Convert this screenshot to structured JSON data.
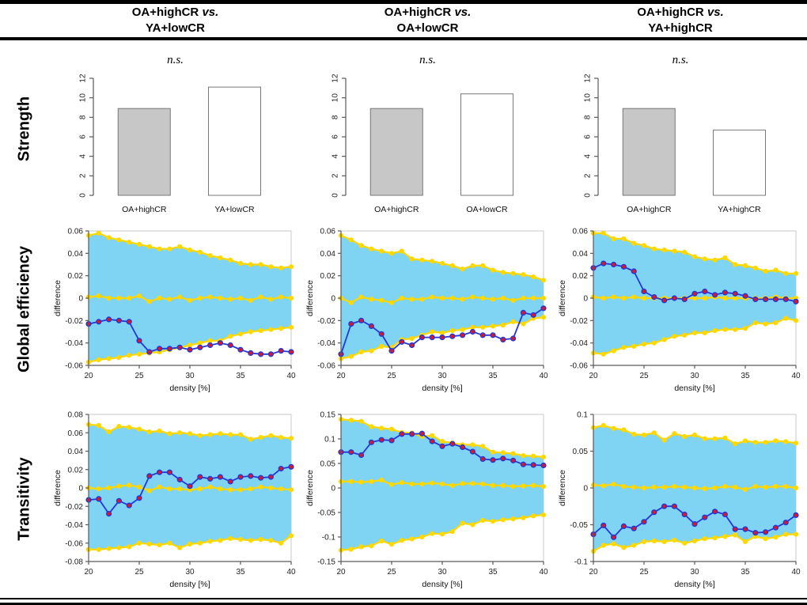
{
  "header": {
    "columns": [
      {
        "group_a": "OA+highCR",
        "vs": "vs.",
        "group_b": "YA+lowCR"
      },
      {
        "group_a": "OA+highCR",
        "vs": "vs.",
        "group_b": "OA+lowCR"
      },
      {
        "group_a": "OA+highCR",
        "vs": "vs.",
        "group_b": "YA+highCR"
      }
    ]
  },
  "row_labels": [
    "Strength",
    "Global efficiency",
    "Transitivity"
  ],
  "significance": {
    "col1": "n.s.",
    "col2": "n.s.",
    "col3": "n.s."
  },
  "colors": {
    "band_fill": "#7fd3f3",
    "ci_line": "#ffd800",
    "diff_line": "#2438d8",
    "marker_fill": "#e0151f",
    "bar_gray": "#c7c7c7",
    "bar_white": "#ffffff",
    "axis": "#5a5a5a",
    "box": "#c9c9c9"
  },
  "chart_data": [
    {
      "type": "bar",
      "row": "Strength",
      "comparison": "OA+highCR vs. YA+lowCR",
      "categories": [
        "OA+highCR",
        "YA+lowCR"
      ],
      "values": [
        8.9,
        11.1
      ],
      "bar_colors": [
        "#c7c7c7",
        "#ffffff"
      ],
      "ylim": [
        0,
        12
      ],
      "yticks": [
        "0",
        "2",
        "4",
        "6",
        "8",
        "10",
        "12"
      ],
      "annotation": "n.s."
    },
    {
      "type": "bar",
      "row": "Strength",
      "comparison": "OA+highCR vs. OA+lowCR",
      "categories": [
        "OA+highCR",
        "OA+lowCR"
      ],
      "values": [
        8.9,
        10.4
      ],
      "bar_colors": [
        "#c7c7c7",
        "#ffffff"
      ],
      "ylim": [
        0,
        12
      ],
      "yticks": [
        "0",
        "2",
        "4",
        "6",
        "8",
        "10",
        "12"
      ],
      "annotation": "n.s."
    },
    {
      "type": "bar",
      "row": "Strength",
      "comparison": "OA+highCR vs. YA+highCR",
      "categories": [
        "OA+highCR",
        "YA+highCR"
      ],
      "values": [
        8.9,
        6.7
      ],
      "bar_colors": [
        "#c7c7c7",
        "#ffffff"
      ],
      "ylim": [
        0,
        12
      ],
      "yticks": [
        "0",
        "2",
        "4",
        "6",
        "8",
        "10",
        "12"
      ],
      "annotation": "n.s."
    },
    {
      "type": "area",
      "row": "Global efficiency",
      "comparison": "OA+highCR vs. YA+lowCR",
      "xlabel": "density [%]",
      "ylabel": "difference",
      "x": [
        20,
        21,
        22,
        23,
        24,
        25,
        26,
        27,
        28,
        29,
        30,
        31,
        32,
        33,
        34,
        35,
        36,
        37,
        38,
        39,
        40
      ],
      "xticks": [
        "20",
        "25",
        "30",
        "35",
        "40"
      ],
      "ylim": [
        -0.06,
        0.06
      ],
      "yticks": [
        "-0.06",
        "-0.04",
        "-0.02",
        "0",
        "0.02",
        "0.04",
        "0.06"
      ],
      "series": [
        {
          "name": "upper CI",
          "values": [
            0.056,
            0.058,
            0.054,
            0.052,
            0.05,
            0.048,
            0.046,
            0.044,
            0.044,
            0.046,
            0.043,
            0.041,
            0.038,
            0.036,
            0.034,
            0.031,
            0.03,
            0.03,
            0.028,
            0.027,
            0.028
          ]
        },
        {
          "name": "null mean",
          "values": [
            0.001,
            0.002,
            0.0,
            0.0,
            0.0,
            0.002,
            -0.003,
            0.0,
            -0.001,
            0.001,
            -0.002,
            0.0,
            0.001,
            0.0,
            -0.001,
            0.0,
            -0.002,
            0.001,
            -0.001,
            0.001,
            0.0
          ]
        },
        {
          "name": "lower CI",
          "values": [
            -0.057,
            -0.055,
            -0.054,
            -0.053,
            -0.051,
            -0.05,
            -0.049,
            -0.048,
            -0.046,
            -0.044,
            -0.042,
            -0.04,
            -0.038,
            -0.038,
            -0.034,
            -0.032,
            -0.03,
            -0.029,
            -0.028,
            -0.027,
            -0.026
          ]
        },
        {
          "name": "observed difference",
          "values": [
            -0.023,
            -0.021,
            -0.019,
            -0.02,
            -0.021,
            -0.038,
            -0.048,
            -0.045,
            -0.045,
            -0.044,
            -0.046,
            -0.044,
            -0.042,
            -0.04,
            -0.042,
            -0.046,
            -0.049,
            -0.05,
            -0.05,
            -0.047,
            -0.048
          ]
        }
      ]
    },
    {
      "type": "area",
      "row": "Global efficiency",
      "comparison": "OA+highCR vs. OA+lowCR",
      "xlabel": "density [%]",
      "ylabel": "difference",
      "x": [
        20,
        21,
        22,
        23,
        24,
        25,
        26,
        27,
        28,
        29,
        30,
        31,
        32,
        33,
        34,
        35,
        36,
        37,
        38,
        39,
        40
      ],
      "xticks": [
        "20",
        "25",
        "30",
        "35",
        "40"
      ],
      "ylim": [
        -0.06,
        0.06
      ],
      "yticks": [
        "-0.06",
        "-0.04",
        "-0.02",
        "0",
        "0.02",
        "0.04",
        "0.06"
      ],
      "series": [
        {
          "name": "upper CI",
          "values": [
            0.056,
            0.052,
            0.047,
            0.044,
            0.042,
            0.04,
            0.042,
            0.035,
            0.034,
            0.033,
            0.031,
            0.029,
            0.026,
            0.029,
            0.029,
            0.025,
            0.023,
            0.022,
            0.021,
            0.019,
            0.016
          ]
        },
        {
          "name": "null mean",
          "values": [
            0.0,
            -0.004,
            0.001,
            -0.001,
            -0.002,
            -0.004,
            0.0,
            -0.001,
            -0.001,
            0.001,
            0.0,
            0.0,
            -0.001,
            0.001,
            0.0,
            -0.001,
            0.0,
            -0.002,
            0.0,
            0.0,
            0.0
          ]
        },
        {
          "name": "lower CI",
          "values": [
            -0.054,
            -0.052,
            -0.048,
            -0.047,
            -0.043,
            -0.044,
            -0.037,
            -0.036,
            -0.033,
            -0.03,
            -0.031,
            -0.029,
            -0.028,
            -0.026,
            -0.026,
            -0.025,
            -0.024,
            -0.021,
            -0.023,
            -0.018,
            -0.017
          ]
        },
        {
          "name": "observed difference",
          "values": [
            -0.05,
            -0.023,
            -0.02,
            -0.025,
            -0.032,
            -0.047,
            -0.039,
            -0.042,
            -0.035,
            -0.035,
            -0.035,
            -0.034,
            -0.033,
            -0.03,
            -0.033,
            -0.033,
            -0.037,
            -0.036,
            -0.013,
            -0.015,
            -0.009
          ]
        }
      ]
    },
    {
      "type": "area",
      "row": "Global efficiency",
      "comparison": "OA+highCR vs. YA+highCR",
      "xlabel": "density [%]",
      "ylabel": "difference",
      "x": [
        20,
        21,
        22,
        23,
        24,
        25,
        26,
        27,
        28,
        29,
        30,
        31,
        32,
        33,
        34,
        35,
        36,
        37,
        38,
        39,
        40
      ],
      "xticks": [
        "20",
        "25",
        "30",
        "35",
        "40"
      ],
      "ylim": [
        -0.06,
        0.06
      ],
      "yticks": [
        "-0.06",
        "-0.04",
        "-0.02",
        "0",
        "0.02",
        "0.04",
        "0.06"
      ],
      "series": [
        {
          "name": "upper CI",
          "values": [
            0.058,
            0.058,
            0.053,
            0.053,
            0.049,
            0.047,
            0.044,
            0.043,
            0.042,
            0.041,
            0.037,
            0.035,
            0.034,
            0.036,
            0.03,
            0.029,
            0.027,
            0.024,
            0.025,
            0.022,
            0.022
          ]
        },
        {
          "name": "null mean",
          "values": [
            0.001,
            0.0,
            0.001,
            0.0,
            0.001,
            0.0,
            0.0,
            0.0,
            0.0,
            0.0,
            0.0,
            0.0,
            0.001,
            0.0,
            0.0,
            0.0,
            0.0,
            0.0,
            0.001,
            0.0,
            0.0
          ]
        },
        {
          "name": "lower CI",
          "values": [
            -0.049,
            -0.05,
            -0.047,
            -0.044,
            -0.043,
            -0.041,
            -0.04,
            -0.037,
            -0.034,
            -0.033,
            -0.031,
            -0.031,
            -0.029,
            -0.028,
            -0.028,
            -0.027,
            -0.022,
            -0.023,
            -0.022,
            -0.018,
            -0.02
          ]
        },
        {
          "name": "observed difference",
          "values": [
            0.027,
            0.031,
            0.03,
            0.028,
            0.024,
            0.006,
            0.001,
            -0.002,
            0.0,
            -0.001,
            0.004,
            0.006,
            0.003,
            0.005,
            0.004,
            0.002,
            -0.001,
            -0.001,
            -0.001,
            -0.001,
            -0.003
          ]
        }
      ]
    },
    {
      "type": "area",
      "row": "Transitivity",
      "comparison": "OA+highCR vs. YA+lowCR",
      "xlabel": "density [%]",
      "ylabel": "difference",
      "x": [
        20,
        21,
        22,
        23,
        24,
        25,
        26,
        27,
        28,
        29,
        30,
        31,
        32,
        33,
        34,
        35,
        36,
        37,
        38,
        39,
        40
      ],
      "xticks": [
        "20",
        "25",
        "30",
        "35",
        "40"
      ],
      "ylim": [
        -0.08,
        0.08
      ],
      "yticks": [
        "-0.08",
        "-0.06",
        "-0.04",
        "-0.02",
        "0",
        "0.02",
        "0.04",
        "0.06",
        "0.08"
      ],
      "series": [
        {
          "name": "upper CI",
          "values": [
            0.069,
            0.068,
            0.061,
            0.067,
            0.066,
            0.064,
            0.061,
            0.062,
            0.059,
            0.06,
            0.059,
            0.057,
            0.058,
            0.059,
            0.058,
            0.058,
            0.053,
            0.055,
            0.057,
            0.055,
            0.054
          ]
        },
        {
          "name": "null mean",
          "values": [
            0.0,
            -0.001,
            0.0,
            0.002,
            0.003,
            0.001,
            -0.003,
            0.001,
            -0.001,
            -0.001,
            -0.002,
            -0.001,
            0.001,
            -0.001,
            -0.002,
            -0.002,
            -0.001,
            0.001,
            0.0,
            -0.001,
            -0.002
          ]
        },
        {
          "name": "lower CI",
          "values": [
            -0.067,
            -0.067,
            -0.066,
            -0.065,
            -0.064,
            -0.06,
            -0.061,
            -0.062,
            -0.06,
            -0.065,
            -0.061,
            -0.06,
            -0.058,
            -0.057,
            -0.055,
            -0.056,
            -0.057,
            -0.056,
            -0.057,
            -0.06,
            -0.052
          ]
        },
        {
          "name": "observed difference",
          "values": [
            -0.013,
            -0.012,
            -0.028,
            -0.014,
            -0.019,
            -0.011,
            0.013,
            0.017,
            0.017,
            0.009,
            0.002,
            0.012,
            0.01,
            0.012,
            0.007,
            0.012,
            0.013,
            0.011,
            0.012,
            0.021,
            0.023
          ]
        }
      ]
    },
    {
      "type": "area",
      "row": "Transitivity",
      "comparison": "OA+highCR vs. OA+lowCR",
      "xlabel": "density [%]",
      "ylabel": "difference",
      "x": [
        20,
        21,
        22,
        23,
        24,
        25,
        26,
        27,
        28,
        29,
        30,
        31,
        32,
        33,
        34,
        35,
        36,
        37,
        38,
        39,
        40
      ],
      "xticks": [
        "20",
        "25",
        "30",
        "35",
        "40"
      ],
      "ylim": [
        -0.15,
        0.15
      ],
      "yticks": [
        "-0.15",
        "-0.1",
        "-0.05",
        "0",
        "0.05",
        "0.1",
        "0.15"
      ],
      "series": [
        {
          "name": "upper CI",
          "values": [
            0.14,
            0.138,
            0.136,
            0.125,
            0.122,
            0.12,
            0.113,
            0.112,
            0.105,
            0.107,
            0.095,
            0.092,
            0.088,
            0.088,
            0.085,
            0.073,
            0.072,
            0.07,
            0.066,
            0.065,
            0.063
          ]
        },
        {
          "name": "null mean",
          "values": [
            0.013,
            0.013,
            0.012,
            0.013,
            0.016,
            0.007,
            0.011,
            0.008,
            0.008,
            0.01,
            0.008,
            0.005,
            0.009,
            0.009,
            0.008,
            0.005,
            0.005,
            0.003,
            0.004,
            0.005,
            0.003
          ]
        },
        {
          "name": "lower CI",
          "values": [
            -0.127,
            -0.125,
            -0.12,
            -0.118,
            -0.108,
            -0.115,
            -0.107,
            -0.104,
            -0.1,
            -0.093,
            -0.094,
            -0.089,
            -0.072,
            -0.075,
            -0.066,
            -0.068,
            -0.065,
            -0.063,
            -0.061,
            -0.057,
            -0.055
          ]
        },
        {
          "name": "observed difference",
          "values": [
            0.073,
            0.073,
            0.067,
            0.093,
            0.098,
            0.097,
            0.11,
            0.11,
            0.111,
            0.095,
            0.085,
            0.09,
            0.083,
            0.074,
            0.059,
            0.057,
            0.06,
            0.056,
            0.048,
            0.047,
            0.046
          ]
        }
      ]
    },
    {
      "type": "area",
      "row": "Transitivity",
      "comparison": "OA+highCR vs. YA+highCR",
      "xlabel": "density [%]",
      "ylabel": "difference",
      "x": [
        20,
        21,
        22,
        23,
        24,
        25,
        26,
        27,
        28,
        29,
        30,
        31,
        32,
        33,
        34,
        35,
        36,
        37,
        38,
        39,
        40
      ],
      "xticks": [
        "20",
        "25",
        "30",
        "35",
        "40"
      ],
      "ylim": [
        -0.1,
        0.1
      ],
      "yticks": [
        "-0.1",
        "-0.05",
        "0",
        "0.05",
        "0.1"
      ],
      "series": [
        {
          "name": "upper CI",
          "values": [
            0.082,
            0.085,
            0.081,
            0.079,
            0.073,
            0.072,
            0.075,
            0.065,
            0.074,
            0.07,
            0.072,
            0.067,
            0.067,
            0.068,
            0.06,
            0.064,
            0.062,
            0.062,
            0.064,
            0.063,
            0.061
          ]
        },
        {
          "name": "null mean",
          "values": [
            0.004,
            0.003,
            0.005,
            0.002,
            0.001,
            0.0,
            0.001,
            0.001,
            0.002,
            0.001,
            0.0,
            -0.001,
            0.0,
            0.002,
            0.001,
            -0.002,
            0.002,
            0.001,
            0.002,
            0.002,
            0.0
          ]
        },
        {
          "name": "lower CI",
          "values": [
            -0.086,
            -0.078,
            -0.076,
            -0.081,
            -0.078,
            -0.073,
            -0.072,
            -0.073,
            -0.071,
            -0.075,
            -0.072,
            -0.069,
            -0.068,
            -0.066,
            -0.064,
            -0.073,
            -0.066,
            -0.069,
            -0.067,
            -0.063,
            -0.063
          ]
        },
        {
          "name": "observed difference",
          "values": [
            -0.063,
            -0.051,
            -0.067,
            -0.052,
            -0.055,
            -0.046,
            -0.033,
            -0.025,
            -0.025,
            -0.036,
            -0.049,
            -0.04,
            -0.032,
            -0.036,
            -0.056,
            -0.056,
            -0.061,
            -0.06,
            -0.054,
            -0.047,
            -0.037
          ]
        }
      ]
    }
  ]
}
